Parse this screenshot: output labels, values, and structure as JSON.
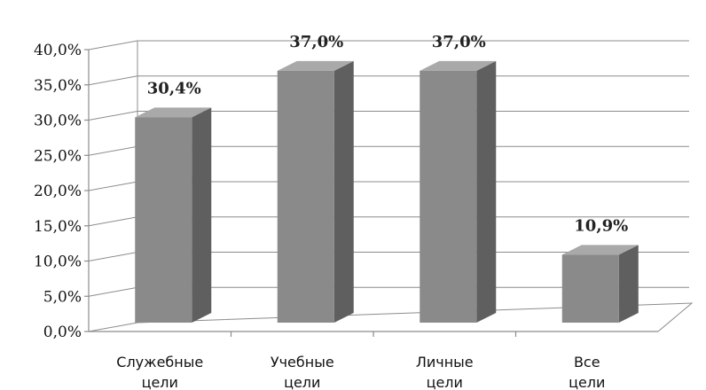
{
  "chart_data": {
    "type": "bar",
    "categories": [
      {
        "line1": "Служебные",
        "line2": "цели"
      },
      {
        "line1": "Учебные",
        "line2": "цели"
      },
      {
        "line1": "Личные",
        "line2": "цели"
      },
      {
        "line1": "Все",
        "line2": "цели"
      }
    ],
    "values": [
      30.4,
      37.0,
      37.0,
      10.9
    ],
    "value_labels": [
      "30,4%",
      "37,0%",
      "37,0%",
      "10,9%"
    ],
    "yticks": [
      "0,0%",
      "5,0%",
      "10,0%",
      "15,0%",
      "20,0%",
      "25,0%",
      "30,0%",
      "35,0%",
      "40,0%"
    ],
    "ylim": [
      0,
      40
    ],
    "grid": true,
    "style": "3d",
    "colors": {
      "front": "#8a8a8a",
      "side": "#5f5f5f",
      "top": "#a9a9a9",
      "grid": "#8c8c8c"
    }
  }
}
